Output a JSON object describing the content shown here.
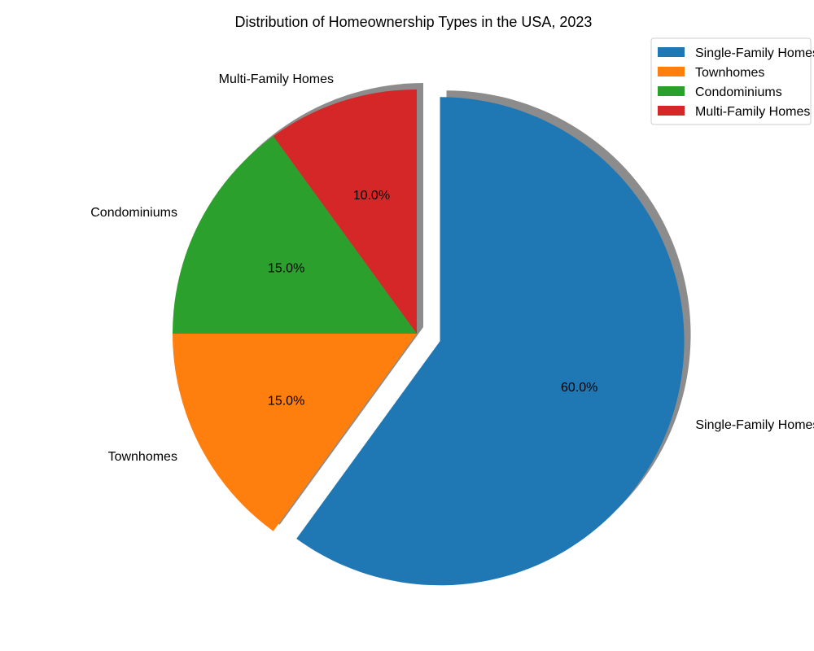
{
  "chart_data": {
    "type": "pie",
    "title": "Distribution of Homeownership Types in the USA, 2023",
    "categories": [
      "Single-Family Homes",
      "Townhomes",
      "Condominiums",
      "Multi-Family Homes"
    ],
    "values": [
      60,
      15,
      15,
      10
    ],
    "percent_labels": [
      "60.0%",
      "15.0%",
      "15.0%",
      "10.0%"
    ],
    "colors": [
      "#1f77b4",
      "#ff7f0e",
      "#2ca02c",
      "#d62728"
    ],
    "exploded": [
      "Single-Family Homes"
    ],
    "shadow": true,
    "start_angle_deg": 90,
    "direction": "clockwise",
    "legend": {
      "placement": "top-right",
      "entries": [
        "Single-Family Homes",
        "Townhomes",
        "Condominiums",
        "Multi-Family Homes"
      ]
    }
  }
}
